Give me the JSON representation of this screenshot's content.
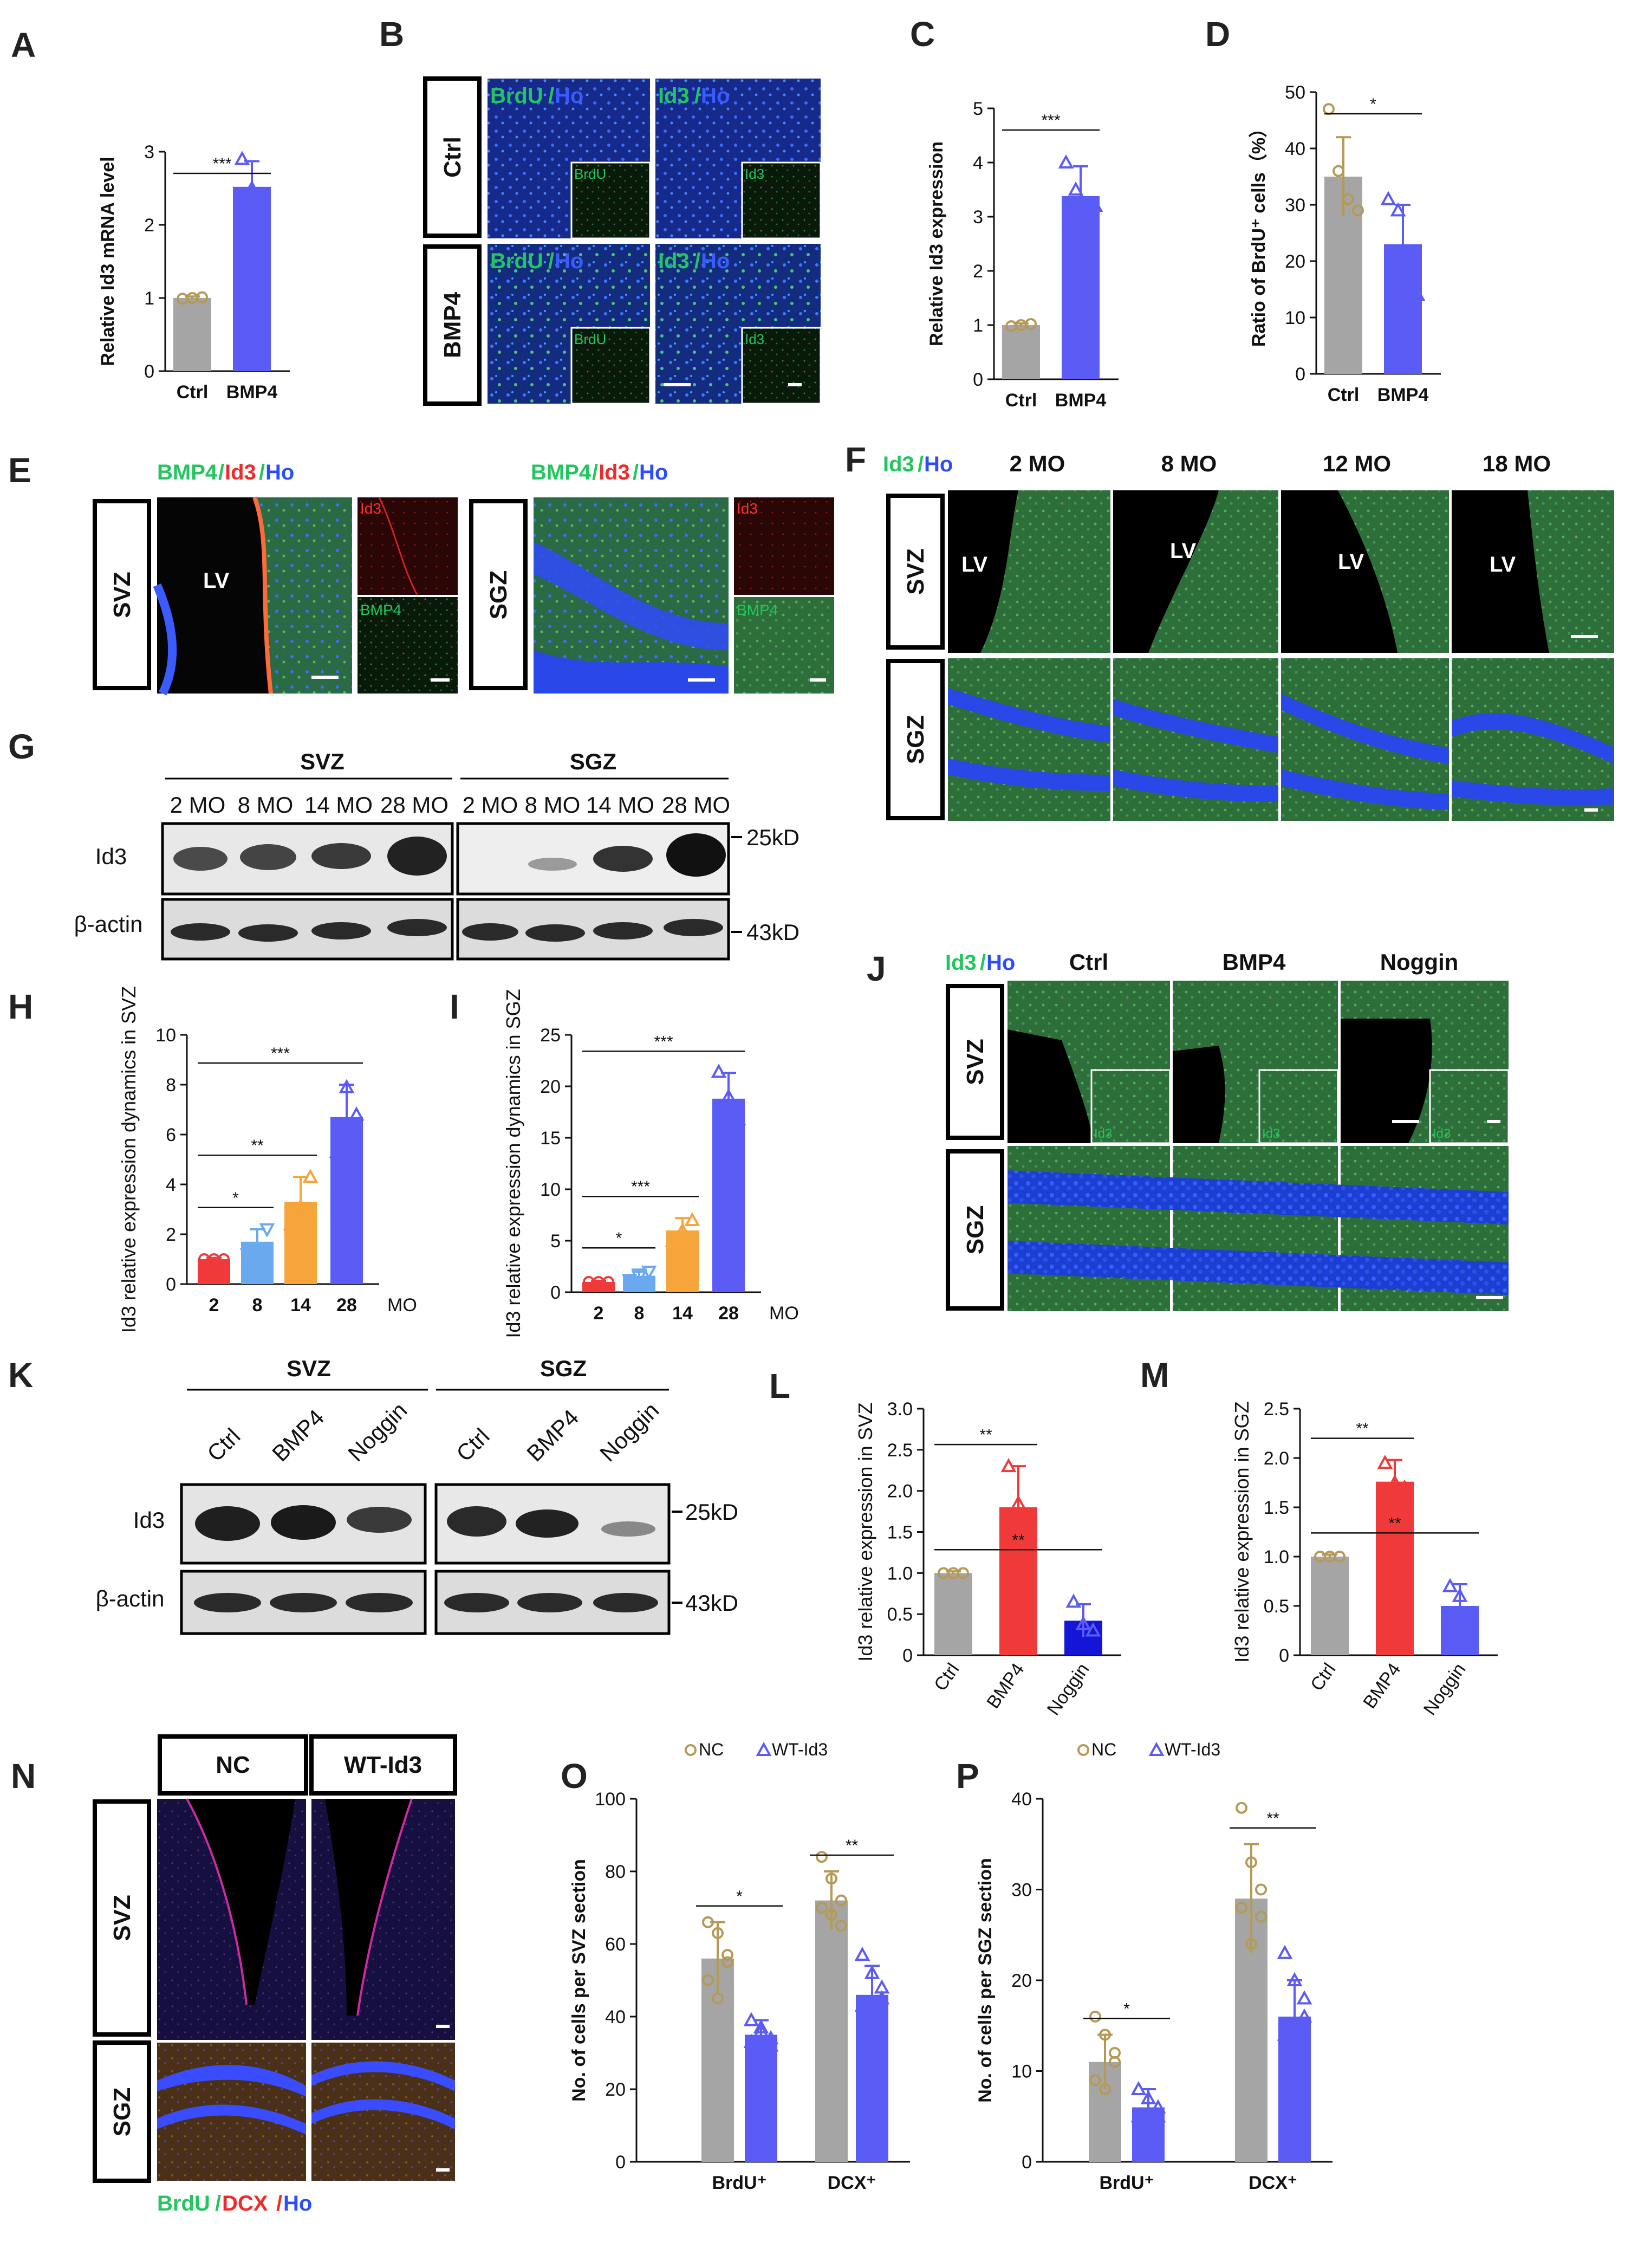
{
  "panels": {
    "A": {
      "letter": "A"
    },
    "B": {
      "letter": "B",
      "col1_label_a": "BrdU",
      "col1_label_b": "Ho",
      "col2_label_a": "Id3",
      "col2_label_b": "Ho",
      "rows": [
        "Ctrl",
        "BMP4"
      ],
      "inset1": "BrdU",
      "inset2": "Id3"
    },
    "C": {
      "letter": "C"
    },
    "D": {
      "letter": "D"
    },
    "E": {
      "letter": "E",
      "title_a": "BMP4",
      "title_b": "Id3",
      "title_c": "Ho",
      "rows": [
        "SVZ",
        "SGZ"
      ],
      "lv": "LV",
      "inset_top": "Id3",
      "inset_bottom": "BMP4"
    },
    "F": {
      "letter": "F",
      "title_a": "Id3",
      "title_b": "Ho",
      "cols": [
        "2 MO",
        "8 MO",
        "12 MO",
        "18 MO"
      ],
      "rows": [
        "SVZ",
        "SGZ"
      ],
      "lv": "LV"
    },
    "G": {
      "letter": "G",
      "group1": "SVZ",
      "group2": "SGZ",
      "lanes": [
        "2 MO",
        "8 MO",
        "14 MO",
        "28 MO",
        "2 MO",
        "8 MO",
        "14 MO",
        "28 MO"
      ],
      "row1": "Id3",
      "row2": "β-actin",
      "kd1": "25kD",
      "kd2": "43kD"
    },
    "H": {
      "letter": "H"
    },
    "I": {
      "letter": "I"
    },
    "J": {
      "letter": "J",
      "title_a": "Id3",
      "title_b": "Ho",
      "cols": [
        "Ctrl",
        "BMP4",
        "Noggin"
      ],
      "rows": [
        "SVZ",
        "SGZ"
      ],
      "inset": "Id3"
    },
    "K": {
      "letter": "K",
      "group1": "SVZ",
      "group2": "SGZ",
      "lanes": [
        "Ctrl",
        "BMP4",
        "Noggin",
        "Ctrl",
        "BMP4",
        "Noggin"
      ],
      "row1": "Id3",
      "row2": "β-actin",
      "kd1": "25kD",
      "kd2": "43kD"
    },
    "L": {
      "letter": "L"
    },
    "M": {
      "letter": "M"
    },
    "N": {
      "letter": "N",
      "cols": [
        "NC",
        "WT-Id3"
      ],
      "rows": [
        "SVZ",
        "SGZ"
      ],
      "legend_a": "BrdU",
      "legend_b": "DCX",
      "legend_c": "Ho"
    },
    "O": {
      "letter": "O"
    },
    "P": {
      "letter": "P"
    }
  },
  "colors": {
    "gray": "#a5a5a5",
    "blue": "#5b5bf5",
    "red": "#f03a3a",
    "orange": "#f5a53a",
    "lightblue": "#6aa9ee",
    "darkblue": "#1515d8",
    "tan": "#b59a55",
    "green": "#22c55e"
  },
  "chart_data": [
    {
      "id": "A",
      "type": "bar",
      "categories": [
        "Ctrl",
        "BMP4"
      ],
      "values": [
        1.0,
        2.52
      ],
      "errors": [
        0.02,
        0.35
      ],
      "ylabel": "Relative Id3 mRNA level",
      "ylim": [
        0,
        3
      ],
      "yticks": [
        0,
        1,
        2,
        3
      ],
      "sig": [
        {
          "label": "***",
          "from": 0,
          "to": 1
        }
      ]
    },
    {
      "id": "C",
      "type": "bar",
      "categories": [
        "Ctrl",
        "BMP4"
      ],
      "values": [
        1.0,
        3.38
      ],
      "errors": [
        0.03,
        0.55
      ],
      "ylabel": "Relative Id3 expression",
      "ylim": [
        0,
        5
      ],
      "yticks": [
        0,
        1,
        2,
        3,
        4,
        5
      ],
      "sig": [
        {
          "label": "***",
          "from": 0,
          "to": 1
        }
      ]
    },
    {
      "id": "D",
      "type": "bar",
      "categories": [
        "Ctrl",
        "BMP4"
      ],
      "values": [
        35,
        23
      ],
      "errors": [
        7,
        7
      ],
      "ylabel": "Ratio of BrdU⁺ cells（%）",
      "ylim": [
        0,
        50
      ],
      "yticks": [
        0,
        10,
        20,
        30,
        40,
        50
      ],
      "sig": [
        {
          "label": "*",
          "from": 0,
          "to": 1
        }
      ]
    },
    {
      "id": "H",
      "type": "bar",
      "categories": [
        "2",
        "8",
        "14",
        "28"
      ],
      "values": [
        1.0,
        1.7,
        3.3,
        6.7
      ],
      "errors": [
        0.05,
        0.5,
        1.0,
        1.3
      ],
      "xunit": "MO",
      "ylabel": "Id3 relative expression dynamics in SVZ",
      "ylim": [
        0,
        10
      ],
      "yticks": [
        0,
        2,
        4,
        6,
        8,
        10
      ],
      "sig": [
        {
          "label": "*",
          "from": 0,
          "to": 1
        },
        {
          "label": "**",
          "from": 0,
          "to": 2
        },
        {
          "label": "***",
          "from": 0,
          "to": 3
        }
      ]
    },
    {
      "id": "I",
      "type": "bar",
      "categories": [
        "2",
        "8",
        "14",
        "28"
      ],
      "values": [
        1.0,
        1.6,
        6.0,
        18.8
      ],
      "errors": [
        0.1,
        0.6,
        1.2,
        2.5
      ],
      "xunit": "MO",
      "ylabel": "Id3 relative expression dynamics in SGZ",
      "ylim": [
        0,
        25
      ],
      "yticks": [
        0,
        5,
        10,
        15,
        20,
        25
      ],
      "sig": [
        {
          "label": "*",
          "from": 0,
          "to": 1
        },
        {
          "label": "***",
          "from": 0,
          "to": 2
        },
        {
          "label": "***",
          "from": 0,
          "to": 3
        }
      ]
    },
    {
      "id": "L",
      "type": "bar",
      "categories": [
        "Ctrl",
        "BMP4",
        "Noggin"
      ],
      "values": [
        1.0,
        1.8,
        0.42
      ],
      "errors": [
        0.02,
        0.5,
        0.2
      ],
      "ylabel": "Id3 relative expression in SVZ",
      "ylim": [
        0,
        3.0
      ],
      "yticks": [
        "0",
        "0.5",
        "1.0",
        "1.5",
        "2.0",
        "2.5",
        "3.0"
      ],
      "sig": [
        {
          "label": "**",
          "from": 0,
          "to": 1
        },
        {
          "label": "**",
          "from": 0,
          "to": 2
        }
      ]
    },
    {
      "id": "M",
      "type": "bar",
      "categories": [
        "Ctrl",
        "BMP4",
        "Noggin"
      ],
      "values": [
        1.0,
        1.76,
        0.5
      ],
      "errors": [
        0.02,
        0.22,
        0.22
      ],
      "ylabel": "Id3 relative expression in SGZ",
      "ylim": [
        0,
        2.5
      ],
      "yticks": [
        "0",
        "0.5",
        "1.0",
        "1.5",
        "2.0",
        "2.5"
      ],
      "sig": [
        {
          "label": "**",
          "from": 0,
          "to": 1
        },
        {
          "label": "**",
          "from": 0,
          "to": 2
        }
      ]
    },
    {
      "id": "O",
      "type": "bar",
      "categories": [
        "BrdU⁺",
        "DCX⁺"
      ],
      "series": [
        {
          "name": "NC",
          "values": [
            56,
            72
          ],
          "errors": [
            10,
            8
          ]
        },
        {
          "name": "WT-Id3",
          "values": [
            35,
            46
          ],
          "errors": [
            4,
            8
          ]
        }
      ],
      "ylabel": "No. of cells per SVZ section",
      "ylim": [
        0,
        100
      ],
      "yticks": [
        0,
        20,
        40,
        60,
        80,
        100
      ],
      "sig": [
        {
          "label": "*",
          "group": 0
        },
        {
          "label": "**",
          "group": 1
        }
      ]
    },
    {
      "id": "P",
      "type": "bar",
      "categories": [
        "BrdU⁺",
        "DCX⁺"
      ],
      "series": [
        {
          "name": "NC",
          "values": [
            11,
            29
          ],
          "errors": [
            3,
            6
          ]
        },
        {
          "name": "WT-Id3",
          "values": [
            6,
            16
          ],
          "errors": [
            2,
            4
          ]
        }
      ],
      "ylabel": "No. of cells per SGZ section",
      "ylim": [
        0,
        40
      ],
      "yticks": [
        0,
        10,
        20,
        30,
        40
      ],
      "sig": [
        {
          "label": "*",
          "group": 0
        },
        {
          "label": "**",
          "group": 1
        }
      ]
    }
  ]
}
